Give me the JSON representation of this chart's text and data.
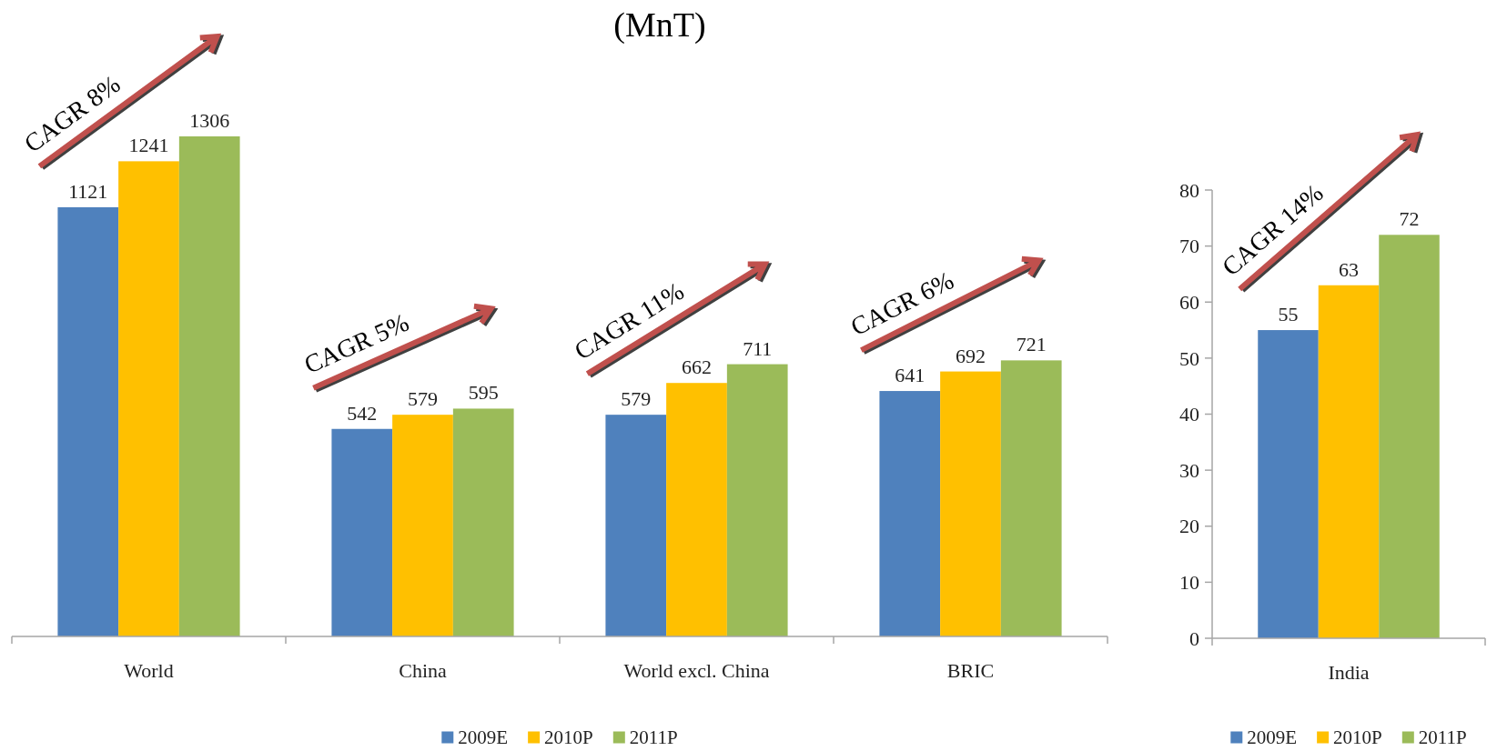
{
  "chart_data": [
    {
      "type": "bar",
      "title": "(MnT)",
      "categories": [
        "World",
        "China",
        "World excl. China",
        "BRIC"
      ],
      "series": [
        {
          "name": "2009E",
          "color": "#4f81bd",
          "values": [
            1121,
            542,
            579,
            641
          ]
        },
        {
          "name": "2010P",
          "color": "#ffc000",
          "values": [
            1241,
            579,
            662,
            692
          ]
        },
        {
          "name": "2011P",
          "color": "#9bbb59",
          "values": [
            1306,
            595,
            711,
            721
          ]
        }
      ],
      "data_labels": true,
      "legend": "bottom",
      "annotations": [
        "CAGR 8%",
        "CAGR 5%",
        "CAGR 11%",
        "CAGR 6%"
      ]
    },
    {
      "type": "bar",
      "categories": [
        "India"
      ],
      "series": [
        {
          "name": "2009E",
          "color": "#4f81bd",
          "values": [
            55
          ]
        },
        {
          "name": "2010P",
          "color": "#ffc000",
          "values": [
            63
          ]
        },
        {
          "name": "2011P",
          "color": "#9bbb59",
          "values": [
            72
          ]
        }
      ],
      "ylim": [
        0,
        80
      ],
      "yticks": [
        0,
        10,
        20,
        30,
        40,
        50,
        60,
        70,
        80
      ],
      "data_labels": true,
      "legend": "bottom",
      "annotations": [
        "CAGR 14%"
      ]
    }
  ]
}
